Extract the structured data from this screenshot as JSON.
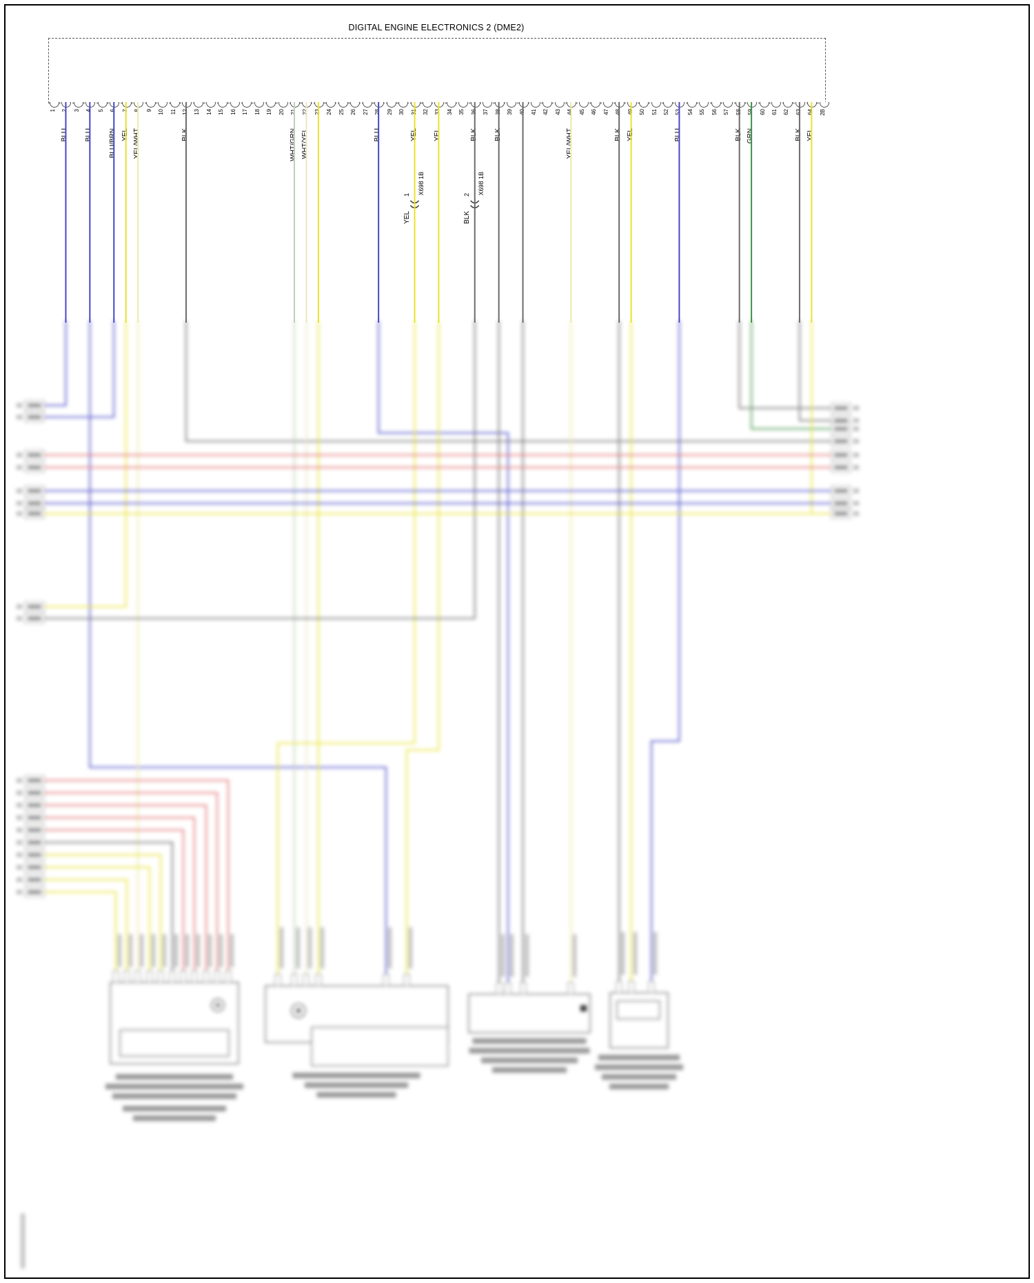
{
  "title": "DIGITAL ENGINE ELECTRONICS 2 (DME2)",
  "connector": {
    "pins": [
      "1",
      "2",
      "3",
      "4",
      "5",
      "6",
      "7",
      "8",
      "9",
      "10",
      "11",
      "12",
      "13",
      "14",
      "15",
      "16",
      "17",
      "18",
      "19",
      "20",
      "21",
      "22",
      "23",
      "24",
      "25",
      "26",
      "27",
      "28",
      "29",
      "30",
      "31",
      "32",
      "33",
      "34",
      "35",
      "36",
      "37",
      "38",
      "39",
      "40",
      "41",
      "42",
      "43",
      "44",
      "45",
      "46",
      "47",
      "48",
      "49",
      "50",
      "51",
      "52",
      "53",
      "54",
      "55",
      "56",
      "57",
      "58",
      "59",
      "60",
      "61",
      "62",
      "63",
      "64",
      "2B"
    ],
    "wire_labels": [
      {
        "pin": "2",
        "label": "BLU"
      },
      {
        "pin": "4",
        "label": "BLU"
      },
      {
        "pin": "6",
        "label": "BLU/BRN"
      },
      {
        "pin": "7",
        "label": "YEL"
      },
      {
        "pin": "8",
        "label": "YEL/WHT"
      },
      {
        "pin": "12",
        "label": "BLK"
      },
      {
        "pin": "21",
        "label": "WHT/GRN"
      },
      {
        "pin": "22",
        "label": "WHT/YEL"
      },
      {
        "pin": "28",
        "label": "BLU"
      },
      {
        "pin": "31",
        "label": "YEL"
      },
      {
        "pin": "33",
        "label": "YEL"
      },
      {
        "pin": "36",
        "label": "BLK"
      },
      {
        "pin": "38",
        "label": "BLK"
      },
      {
        "pin": "44",
        "label": "YEL/WHT"
      },
      {
        "pin": "48",
        "label": "BLK"
      },
      {
        "pin": "49",
        "label": "YEL"
      },
      {
        "pin": "53",
        "label": "BLU"
      },
      {
        "pin": "58",
        "label": "BLK"
      },
      {
        "pin": "59",
        "label": "GRN"
      },
      {
        "pin": "63",
        "label": "BLK"
      },
      {
        "pin": "64",
        "label": "YEL"
      }
    ]
  },
  "inline_connectors": [
    {
      "pin": "31",
      "cavity": "1",
      "name": "X698 1B",
      "wire_color_below": "YEL"
    },
    {
      "pin": "36",
      "cavity": "2",
      "name": "X698 1B",
      "wire_color_below": "BLK"
    }
  ],
  "wire_colors": {
    "BLU": "#4646c8",
    "BLU/BRN": "#4646c8",
    "YEL": "#e8e22e",
    "YEL/WHT": "#efe9a6",
    "BLK": "#6a6a6a",
    "WHT/GRN": "#bed2b4",
    "WHT/YEL": "#e9e6c2",
    "GRN": "#3c9440",
    "RED": "#e26a6a"
  }
}
